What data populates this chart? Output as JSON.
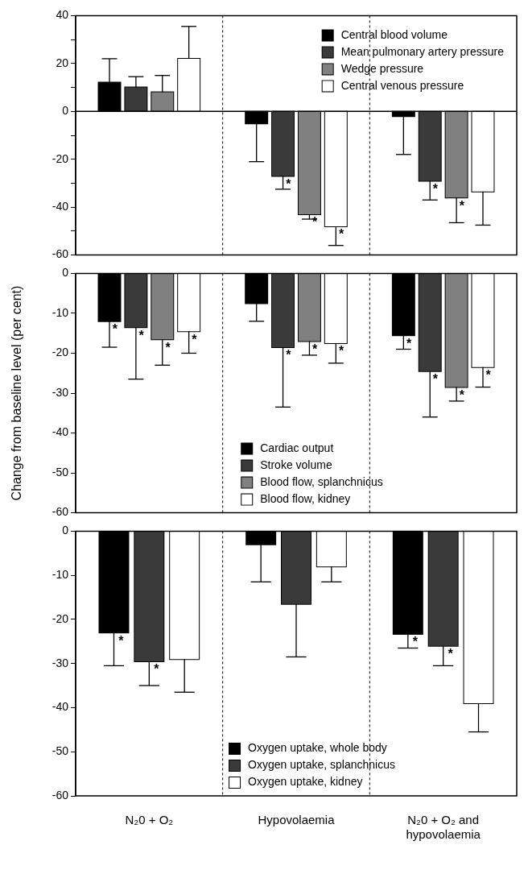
{
  "chart_data": [
    {
      "type": "bar",
      "ylim": [
        -60,
        40
      ],
      "yticks": [
        -60,
        {
          "value": -50,
          "label": null
        },
        -40,
        {
          "value": -30,
          "label": null
        },
        -20,
        {
          "value": -10,
          "label": null
        },
        0,
        {
          "value": 10,
          "label": null
        },
        20,
        {
          "value": 30,
          "label": null
        },
        40
      ],
      "tick_labels": "y",
      "grid": "x",
      "legend": "top right",
      "ref_lines": [
        {
          "axis": "y",
          "value": 0
        }
      ],
      "series": [
        {
          "name": "Central blood volume",
          "color": "#000000",
          "values": [
            12,
            -5,
            -2
          ],
          "errors": [
            [
              12,
              22
            ],
            [
              -21,
              -5
            ],
            [
              -18,
              -2
            ]
          ],
          "value_labels": [
            null,
            null,
            null
          ]
        },
        {
          "name": "Mean pulmonary artery pressure",
          "color": "#3a3a3a",
          "values": [
            10,
            -27,
            -29
          ],
          "errors": [
            [
              10,
              14.5
            ],
            [
              -32.5,
              -27
            ],
            [
              -37,
              -29
            ]
          ],
          "value_labels": [
            null,
            "*",
            "*"
          ]
        },
        {
          "name": "Wedge pressure",
          "color": "#808080",
          "values": [
            8,
            -43,
            -36
          ],
          "errors": [
            [
              8,
              15
            ],
            [
              -45,
              -43
            ],
            [
              -46.5,
              -36
            ]
          ],
          "value_labels": [
            null,
            "*",
            "*"
          ]
        },
        {
          "name": "Central venous pressure",
          "color": "#ffffff",
          "values": [
            22,
            -48,
            -33.5
          ],
          "errors": [
            [
              22,
              35.5
            ],
            [
              -56,
              -48
            ],
            [
              -47.5,
              -33.5
            ]
          ],
          "value_labels": [
            null,
            "*",
            null
          ]
        }
      ]
    },
    {
      "type": "bar",
      "ylabel": "Change from baseline level (per cent)",
      "ylim": [
        -60,
        0
      ],
      "yticks": [
        -60,
        -50,
        -40,
        -30,
        -20,
        -10,
        0
      ],
      "tick_labels": "y",
      "grid": "x",
      "legend": "bottom",
      "series": [
        {
          "name": "Cardiac output",
          "color": "#000000",
          "values": [
            -12,
            -7.5,
            -15.5
          ],
          "errors": [
            [
              -18.5,
              -12
            ],
            [
              -12,
              -7.5
            ],
            [
              -19,
              -15.5
            ]
          ],
          "value_labels": [
            "*",
            null,
            "*"
          ]
        },
        {
          "name": "Stroke volume",
          "color": "#3a3a3a",
          "values": [
            -13.5,
            -18.5,
            -24.5
          ],
          "errors": [
            [
              -26.5,
              -13.5
            ],
            [
              -33.5,
              -18.5
            ],
            [
              -36,
              -24.5
            ]
          ],
          "value_labels": [
            "*",
            "*",
            "*"
          ]
        },
        {
          "name": "Blood flow, splanchnicus",
          "color": "#808080",
          "values": [
            -16.5,
            -17,
            -28.5
          ],
          "errors": [
            [
              -23,
              -16.5
            ],
            [
              -20.5,
              -17
            ],
            [
              -32,
              -28.5
            ]
          ],
          "value_labels": [
            "*",
            "*",
            "*"
          ]
        },
        {
          "name": "Blood flow, kidney",
          "color": "#ffffff",
          "values": [
            -14.5,
            -17.5,
            -23.5
          ],
          "errors": [
            [
              -20,
              -14.5
            ],
            [
              -22.5,
              -17.5
            ],
            [
              -28.5,
              -23.5
            ]
          ],
          "value_labels": [
            "*",
            "*",
            "*"
          ]
        }
      ]
    },
    {
      "type": "bar",
      "categories": [
        "N₂0 + O₂",
        "Hypovolaemia",
        "N₂0 + O₂ and hypovolaemia"
      ],
      "ylim": [
        -60,
        0
      ],
      "yticks": [
        -60,
        -50,
        -40,
        -30,
        -20,
        -10,
        0
      ],
      "grid": "x",
      "legend": "bottom",
      "series": [
        {
          "name": "Oxygen uptake, whole body",
          "color": "#000000",
          "values": [
            -23,
            -3,
            -23.3
          ],
          "errors": [
            [
              -30.5,
              -23
            ],
            [
              -11.5,
              -3
            ],
            [
              -26.5,
              -23.3
            ]
          ],
          "value_labels": [
            "*",
            null,
            "*"
          ]
        },
        {
          "name": "Oxygen uptake, splanchnicus",
          "color": "#3a3a3a",
          "values": [
            -29.5,
            -16.5,
            -26
          ],
          "errors": [
            [
              -35,
              -29.5
            ],
            [
              -28.5,
              -16.5
            ],
            [
              -30.5,
              -26
            ]
          ],
          "value_labels": [
            "*",
            null,
            "*"
          ]
        },
        {
          "name": "Oxygen uptake, kidney",
          "color": "#ffffff",
          "values": [
            -29,
            -8,
            -39
          ],
          "errors": [
            [
              -36.5,
              -29
            ],
            [
              -11.5,
              -8
            ],
            [
              -45.5,
              -39
            ]
          ],
          "value_labels": [
            null,
            null,
            null
          ]
        }
      ]
    }
  ]
}
